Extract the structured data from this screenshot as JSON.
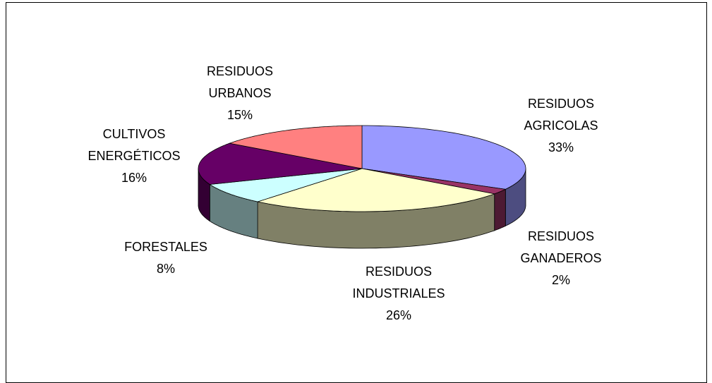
{
  "chart_data": {
    "type": "pie",
    "categories": [
      "RESIDUOS AGRICOLAS",
      "RESIDUOS GANADEROS",
      "RESIDUOS INDUSTRIALES",
      "FORESTALES",
      "CULTIVOS ENERGÉTICOS",
      "RESIDUOS URBANOS"
    ],
    "values": [
      33,
      2,
      26,
      8,
      16,
      15
    ],
    "value_labels": [
      "33%",
      "2%",
      "26%",
      "8%",
      "16%",
      "15%"
    ],
    "colors": [
      "#9999ff",
      "#993366",
      "#ffffcc",
      "#ccffff",
      "#660066",
      "#ff8080"
    ]
  }
}
